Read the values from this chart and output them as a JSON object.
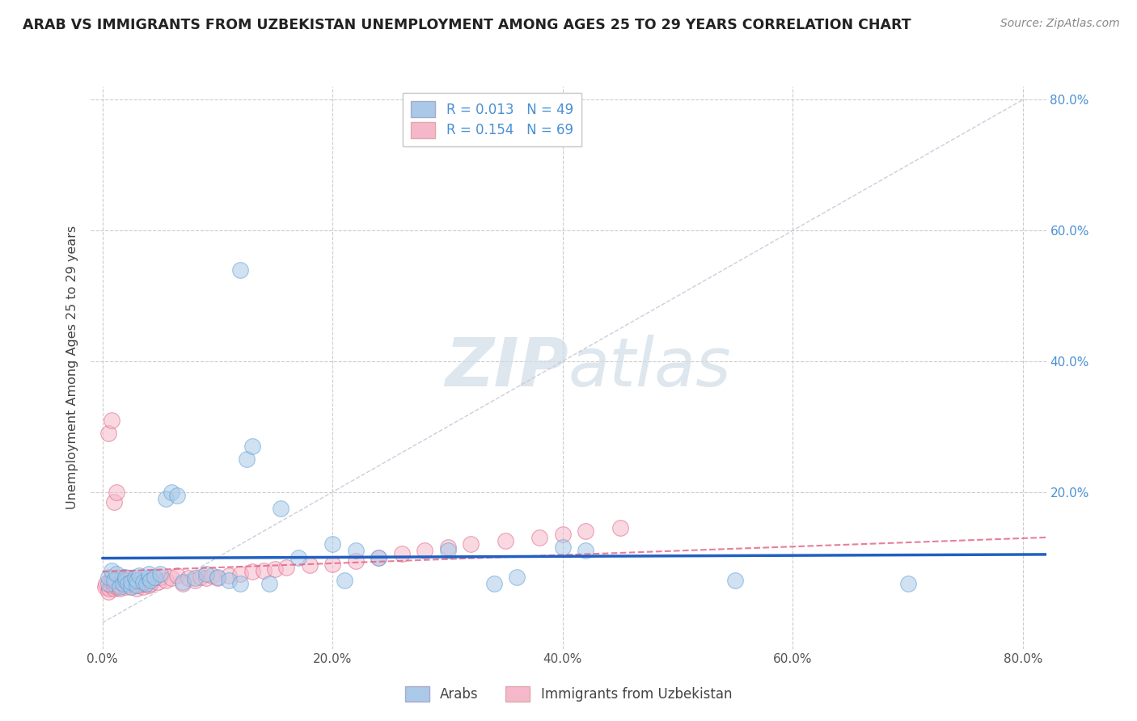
{
  "title": "ARAB VS IMMIGRANTS FROM UZBEKISTAN UNEMPLOYMENT AMONG AGES 25 TO 29 YEARS CORRELATION CHART",
  "source": "Source: ZipAtlas.com",
  "ylabel": "Unemployment Among Ages 25 to 29 years",
  "xlim": [
    -0.01,
    0.82
  ],
  "ylim": [
    -0.04,
    0.82
  ],
  "xtick_values": [
    0.0,
    0.2,
    0.4,
    0.6,
    0.8
  ],
  "xtick_labels": [
    "0.0%",
    "20.0%",
    "40.0%",
    "60.0%",
    "80.0%"
  ],
  "ytick_values": [
    0.2,
    0.4,
    0.6,
    0.8
  ],
  "ytick_labels": [
    "20.0%",
    "40.0%",
    "60.0%",
    "80.0%"
  ],
  "legend_labels": [
    "Arabs",
    "Immigrants from Uzbekistan"
  ],
  "arab_color": "#aac9e8",
  "uzbek_color": "#f5b8cb",
  "arab_edge": "#5a9fd4",
  "uzbek_edge": "#e06080",
  "arab_R": 0.013,
  "arab_N": 49,
  "uzbek_R": 0.154,
  "uzbek_N": 69,
  "arab_line_color": "#2060c0",
  "uzbek_line_color": "#e06080",
  "diag_color": "#c8c8d8",
  "watermark_color": "#d0dce8",
  "background_color": "#ffffff",
  "grid_color": "#cccccc",
  "label_color_blue": "#4a90d4",
  "arab_scatter_x": [
    0.005,
    0.005,
    0.008,
    0.01,
    0.012,
    0.015,
    0.018,
    0.02,
    0.02,
    0.022,
    0.025,
    0.025,
    0.028,
    0.03,
    0.03,
    0.032,
    0.035,
    0.038,
    0.04,
    0.04,
    0.042,
    0.045,
    0.05,
    0.055,
    0.06,
    0.065,
    0.07,
    0.08,
    0.09,
    0.1,
    0.11,
    0.12,
    0.125,
    0.13,
    0.145,
    0.155,
    0.17,
    0.2,
    0.21,
    0.22,
    0.24,
    0.3,
    0.34,
    0.36,
    0.4,
    0.42,
    0.55,
    0.7,
    0.12
  ],
  "arab_scatter_y": [
    0.06,
    0.07,
    0.08,
    0.065,
    0.075,
    0.055,
    0.06,
    0.065,
    0.07,
    0.06,
    0.055,
    0.062,
    0.068,
    0.058,
    0.065,
    0.072,
    0.062,
    0.06,
    0.068,
    0.075,
    0.065,
    0.07,
    0.075,
    0.19,
    0.2,
    0.195,
    0.062,
    0.068,
    0.075,
    0.07,
    0.065,
    0.06,
    0.25,
    0.27,
    0.06,
    0.175,
    0.1,
    0.12,
    0.065,
    0.11,
    0.1,
    0.11,
    0.06,
    0.07,
    0.115,
    0.11,
    0.065,
    0.06,
    0.54
  ],
  "uzbek_scatter_x": [
    0.002,
    0.003,
    0.005,
    0.006,
    0.007,
    0.008,
    0.008,
    0.01,
    0.01,
    0.012,
    0.012,
    0.013,
    0.015,
    0.015,
    0.016,
    0.018,
    0.018,
    0.02,
    0.02,
    0.022,
    0.022,
    0.025,
    0.025,
    0.028,
    0.03,
    0.03,
    0.032,
    0.035,
    0.035,
    0.038,
    0.04,
    0.04,
    0.042,
    0.045,
    0.048,
    0.05,
    0.055,
    0.06,
    0.065,
    0.07,
    0.075,
    0.08,
    0.085,
    0.09,
    0.095,
    0.1,
    0.11,
    0.12,
    0.13,
    0.14,
    0.15,
    0.16,
    0.18,
    0.2,
    0.22,
    0.24,
    0.26,
    0.28,
    0.3,
    0.32,
    0.35,
    0.38,
    0.4,
    0.42,
    0.45,
    0.005,
    0.008,
    0.01,
    0.012
  ],
  "uzbek_scatter_y": [
    0.055,
    0.06,
    0.048,
    0.052,
    0.058,
    0.062,
    0.068,
    0.052,
    0.06,
    0.055,
    0.065,
    0.07,
    0.052,
    0.058,
    0.062,
    0.065,
    0.07,
    0.055,
    0.065,
    0.06,
    0.068,
    0.055,
    0.062,
    0.058,
    0.052,
    0.065,
    0.058,
    0.055,
    0.06,
    0.062,
    0.058,
    0.065,
    0.06,
    0.068,
    0.062,
    0.07,
    0.065,
    0.068,
    0.072,
    0.06,
    0.068,
    0.065,
    0.07,
    0.068,
    0.072,
    0.068,
    0.072,
    0.075,
    0.078,
    0.08,
    0.082,
    0.085,
    0.088,
    0.09,
    0.095,
    0.1,
    0.105,
    0.11,
    0.115,
    0.12,
    0.125,
    0.13,
    0.135,
    0.14,
    0.145,
    0.29,
    0.31,
    0.185,
    0.2
  ]
}
